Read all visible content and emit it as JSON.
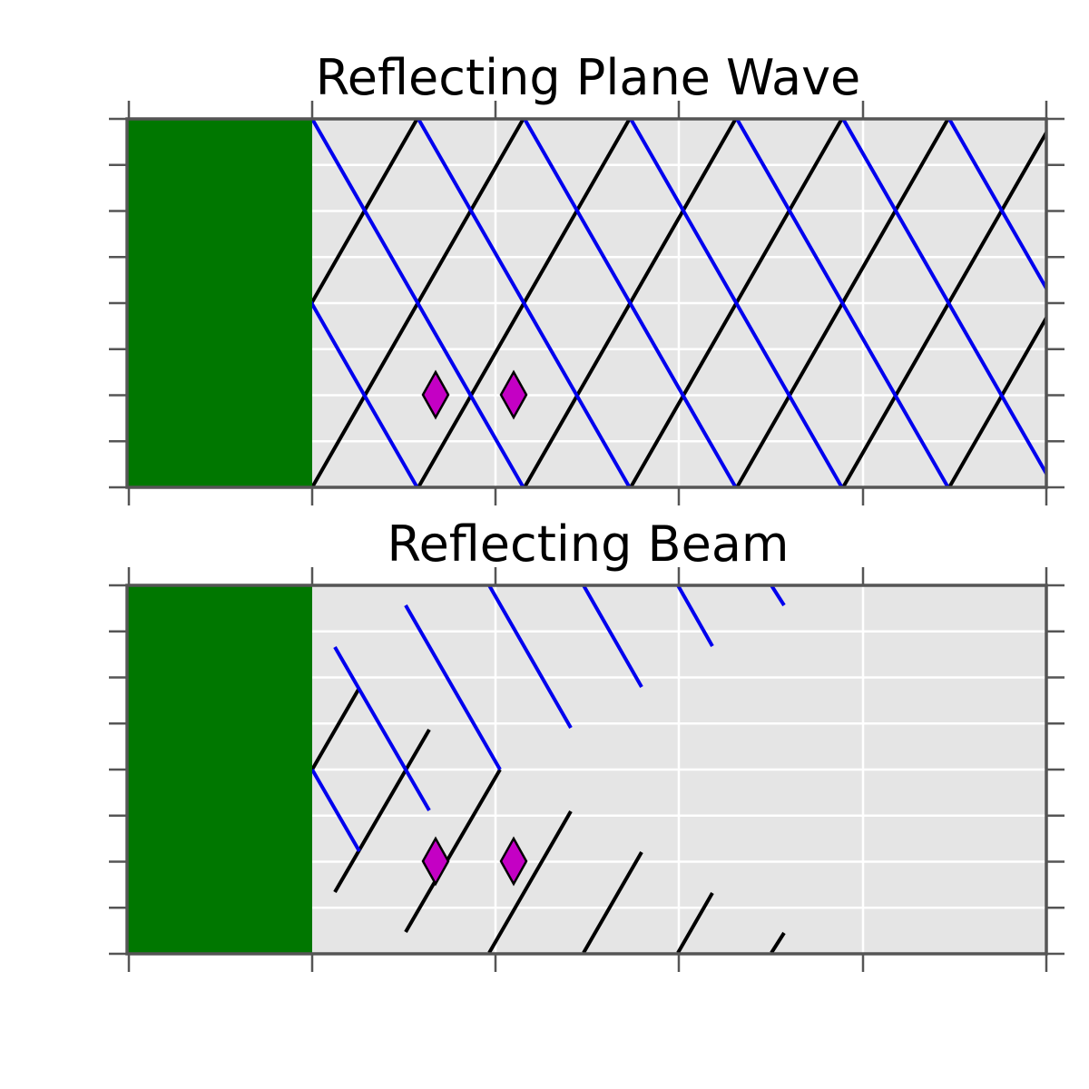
{
  "colors": {
    "background": "#ffffff",
    "plot_bg": "#e5e5e5",
    "grid": "#ffffff",
    "frame": "#555555",
    "wall": "#007700",
    "incident_ray": "#000000",
    "reflected_ray": "#0000ee",
    "marker_fill": "#c400c4",
    "marker_edge": "#000000"
  },
  "panels": [
    {
      "title": "Reflecting Plane Wave",
      "mode": "plane_wave",
      "wall_icon": "green-wall-block",
      "marker_icon": "diamond-marker"
    },
    {
      "title": "Reflecting Beam",
      "mode": "beam",
      "wall_icon": "green-wall-block",
      "marker_icon": "diamond-marker"
    }
  ]
}
